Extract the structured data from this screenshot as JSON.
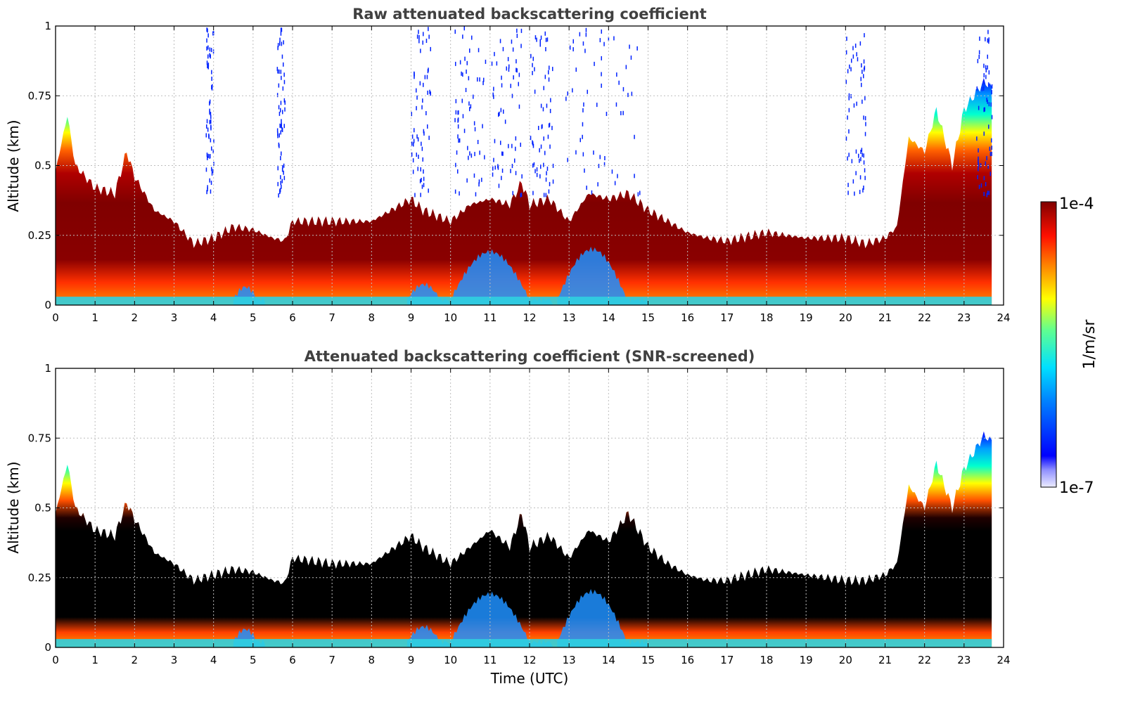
{
  "chart_data": [
    {
      "type": "heatmap",
      "title": "Raw attenuated backscattering coefficient",
      "xlabel": "",
      "ylabel": "Altitude (km)",
      "xlim": [
        0,
        24
      ],
      "ylim": [
        0,
        1
      ],
      "x_ticks": [
        "0",
        "1",
        "2",
        "3",
        "4",
        "5",
        "6",
        "7",
        "8",
        "9",
        "10",
        "11",
        "12",
        "13",
        "14",
        "15",
        "16",
        "17",
        "18",
        "19",
        "20",
        "21",
        "22",
        "23",
        "24"
      ],
      "y_ticks": [
        "0",
        "0.25",
        "0.5",
        "0.75",
        "1"
      ],
      "grid": true,
      "colorbar": {
        "label": "1/m/sr",
        "min_label": "1e-7",
        "max_label": "1e-4",
        "scale": "log",
        "colormap": "jet"
      },
      "layer_top_km": {
        "time_utc": [
          0,
          0.3,
          0.5,
          1,
          1.5,
          1.8,
          2,
          2.5,
          3,
          3.5,
          4,
          4.5,
          5,
          5.5,
          5.8,
          6,
          7,
          8,
          9,
          9.3,
          10,
          10.5,
          11,
          11.5,
          11.8,
          12,
          12.5,
          13,
          13.5,
          14,
          14.5,
          15,
          15.5,
          16,
          16.5,
          17,
          18,
          19,
          20,
          20.5,
          21,
          21.3,
          21.6,
          22,
          22.3,
          22.7,
          23,
          23.5,
          23.7
        ],
        "altitude_km": [
          0.48,
          0.68,
          0.5,
          0.42,
          0.4,
          0.55,
          0.46,
          0.34,
          0.3,
          0.22,
          0.24,
          0.28,
          0.27,
          0.24,
          0.23,
          0.3,
          0.3,
          0.3,
          0.38,
          0.34,
          0.3,
          0.36,
          0.38,
          0.36,
          0.44,
          0.36,
          0.38,
          0.3,
          0.4,
          0.38,
          0.4,
          0.34,
          0.3,
          0.26,
          0.24,
          0.23,
          0.26,
          0.24,
          0.24,
          0.22,
          0.24,
          0.28,
          0.6,
          0.55,
          0.7,
          0.5,
          0.7,
          0.8,
          0.78
        ]
      }
    },
    {
      "type": "heatmap",
      "title": "Attenuated backscattering coefficient (SNR-screened)",
      "xlabel": "Time (UTC)",
      "ylabel": "Altitude (km)",
      "xlim": [
        0,
        24
      ],
      "ylim": [
        0,
        1
      ],
      "x_ticks": [
        "0",
        "1",
        "2",
        "3",
        "4",
        "5",
        "6",
        "7",
        "8",
        "9",
        "10",
        "11",
        "12",
        "13",
        "14",
        "15",
        "16",
        "17",
        "18",
        "19",
        "20",
        "21",
        "22",
        "23",
        "24"
      ],
      "y_ticks": [
        "0",
        "0.25",
        "0.5",
        "0.75",
        "1"
      ],
      "grid": true,
      "colorbar": {
        "label": "1/m/sr",
        "min_label": "1e-7",
        "max_label": "1e-4",
        "scale": "log",
        "colormap": "jet"
      },
      "layer_top_km": {
        "time_utc": [
          0,
          0.3,
          0.5,
          1,
          1.5,
          1.8,
          2,
          2.5,
          3,
          3.5,
          4,
          4.5,
          5,
          5.5,
          5.8,
          6,
          7,
          8,
          9,
          9.3,
          10,
          10.5,
          11,
          11.5,
          11.8,
          12,
          12.5,
          13,
          13.5,
          14,
          14.5,
          15,
          15.5,
          16,
          16.5,
          17,
          18,
          19,
          20,
          20.5,
          21,
          21.3,
          21.6,
          22,
          22.3,
          22.7,
          23,
          23.5,
          23.7
        ],
        "altitude_km": [
          0.48,
          0.66,
          0.5,
          0.42,
          0.4,
          0.52,
          0.46,
          0.34,
          0.3,
          0.24,
          0.26,
          0.28,
          0.27,
          0.24,
          0.23,
          0.32,
          0.3,
          0.3,
          0.4,
          0.36,
          0.3,
          0.36,
          0.42,
          0.36,
          0.48,
          0.36,
          0.4,
          0.32,
          0.42,
          0.38,
          0.48,
          0.36,
          0.3,
          0.26,
          0.24,
          0.24,
          0.28,
          0.26,
          0.24,
          0.24,
          0.26,
          0.3,
          0.58,
          0.5,
          0.66,
          0.5,
          0.64,
          0.76,
          0.74
        ]
      }
    }
  ],
  "colorbar": {
    "label": "1/m/sr",
    "top_label": "1e-4",
    "bottom_label": "1e-7"
  }
}
